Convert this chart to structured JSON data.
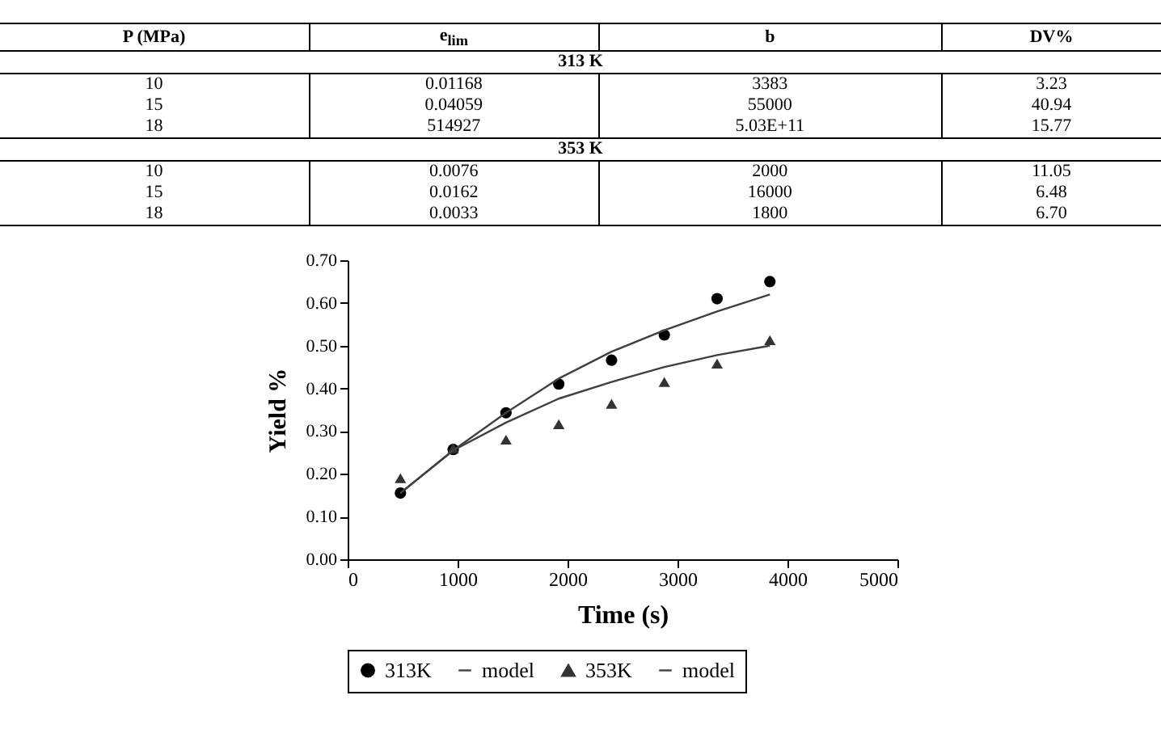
{
  "chart_data": [
    {
      "type": "other",
      "categories": [
        "P (MPa)",
        "e$_{lim}$",
        "b",
        "DV%"
      ],
      "cell_labels": [
        [
          "313 K"
        ],
        [
          "10",
          "0.01168",
          "3383",
          "3.23"
        ],
        [
          "15",
          "0.04059",
          "55000",
          "40.94"
        ],
        [
          "18",
          "514927",
          "5.03E+11",
          "15.77"
        ],
        [
          "353 K"
        ],
        [
          "10",
          "0.0076",
          "2000",
          "11.05"
        ],
        [
          "15",
          "0.0162",
          "16000",
          "6.48"
        ],
        [
          "18",
          "0.0033",
          "1800",
          "6.70"
        ]
      ]
    },
    {
      "type": "scatter",
      "x": [
        480,
        960,
        1440,
        1920,
        2400,
        2880,
        3360,
        3840
      ],
      "series": [
        {
          "name": "313K",
          "type": "scatter",
          "marker": "circle",
          "color": "#000000",
          "values": [
            0.155,
            0.257,
            0.343,
            0.41,
            0.466,
            0.525,
            0.61,
            0.65
          ]
        },
        {
          "name": "model",
          "type": "line",
          "color": "#404040",
          "values": [
            0.155,
            0.255,
            0.343,
            0.423,
            0.486,
            0.536,
            0.58,
            0.62
          ]
        },
        {
          "name": "353K",
          "type": "scatter",
          "marker": "triangle",
          "color": "#333333",
          "values": [
            0.19,
            0.26,
            0.28,
            0.316,
            0.364,
            0.415,
            0.458,
            0.513
          ]
        },
        {
          "name": "model",
          "type": "line",
          "color": "#404040",
          "values": [
            0.155,
            0.255,
            0.32,
            0.376,
            0.415,
            0.45,
            0.478,
            0.5
          ]
        }
      ],
      "xlabel": "Time (s)",
      "ylabel": "Yield %",
      "xlim": [
        0,
        5000
      ],
      "xticks": [
        0,
        1000,
        2000,
        3000,
        4000,
        5000
      ],
      "ylim": [
        0,
        0.7
      ],
      "yticks": [
        {
          "value": 0,
          "label": "0.00"
        },
        {
          "value": 0.1,
          "label": "0.10"
        },
        {
          "value": 0.2,
          "label": "0.20"
        },
        {
          "value": 0.3,
          "label": "0.30"
        },
        {
          "value": 0.4,
          "label": "0.40"
        },
        {
          "value": 0.5,
          "label": "0.50"
        },
        {
          "value": 0.6,
          "label": "0.60"
        },
        {
          "value": 0.7,
          "label": "0.70"
        }
      ],
      "grid": false,
      "legend": "bottom"
    }
  ]
}
